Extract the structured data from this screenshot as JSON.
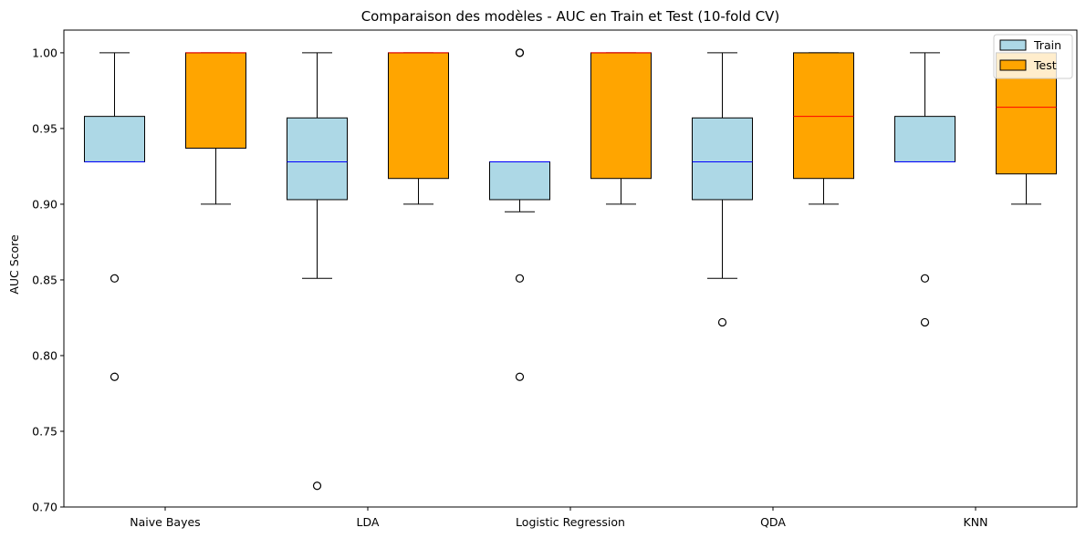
{
  "chart_data": {
    "type": "boxplot",
    "title": "Comparaison des modèles - AUC en Train et Test (10-fold CV)",
    "xlabel": "",
    "ylabel": "AUC Score",
    "ylim": [
      0.7,
      1.015
    ],
    "yticks": [
      "0.70",
      "0.75",
      "0.80",
      "0.85",
      "0.90",
      "0.95",
      "1.00"
    ],
    "grid": false,
    "legend_position": "top-right",
    "categories": [
      "Naive Bayes",
      "LDA",
      "Logistic Regression",
      "QDA",
      "KNN"
    ],
    "series": [
      {
        "name": "Train",
        "fill": "#add8e6",
        "median_color": "#0000ff",
        "boxes": [
          {
            "q1": 0.928,
            "median": 0.928,
            "q3": 0.958,
            "whisker_low": 0.928,
            "whisker_high": 1.0,
            "outliers": [
              0.851,
              0.786
            ]
          },
          {
            "q1": 0.903,
            "median": 0.928,
            "q3": 0.957,
            "whisker_low": 0.851,
            "whisker_high": 1.0,
            "outliers": [
              0.714
            ]
          },
          {
            "q1": 0.903,
            "median": 0.928,
            "q3": 0.928,
            "whisker_low": 0.895,
            "whisker_high": 0.928,
            "outliers": [
              1.0,
              1.0,
              0.851,
              0.786
            ]
          },
          {
            "q1": 0.903,
            "median": 0.928,
            "q3": 0.957,
            "whisker_low": 0.851,
            "whisker_high": 1.0,
            "outliers": [
              0.822
            ]
          },
          {
            "q1": 0.928,
            "median": 0.928,
            "q3": 0.958,
            "whisker_low": 0.928,
            "whisker_high": 1.0,
            "outliers": [
              0.851,
              0.822
            ]
          }
        ]
      },
      {
        "name": "Test",
        "fill": "#ffa500",
        "median_color": "#ff0000",
        "boxes": [
          {
            "q1": 0.937,
            "median": 1.0,
            "q3": 1.0,
            "whisker_low": 0.9,
            "whisker_high": 1.0,
            "outliers": []
          },
          {
            "q1": 0.917,
            "median": 1.0,
            "q3": 1.0,
            "whisker_low": 0.9,
            "whisker_high": 1.0,
            "outliers": []
          },
          {
            "q1": 0.917,
            "median": 1.0,
            "q3": 1.0,
            "whisker_low": 0.9,
            "whisker_high": 1.0,
            "outliers": []
          },
          {
            "q1": 0.917,
            "median": 0.958,
            "q3": 1.0,
            "whisker_low": 0.9,
            "whisker_high": 1.0,
            "outliers": []
          },
          {
            "q1": 0.92,
            "median": 0.964,
            "q3": 1.0,
            "whisker_low": 0.9,
            "whisker_high": 1.0,
            "outliers": []
          }
        ]
      }
    ]
  }
}
